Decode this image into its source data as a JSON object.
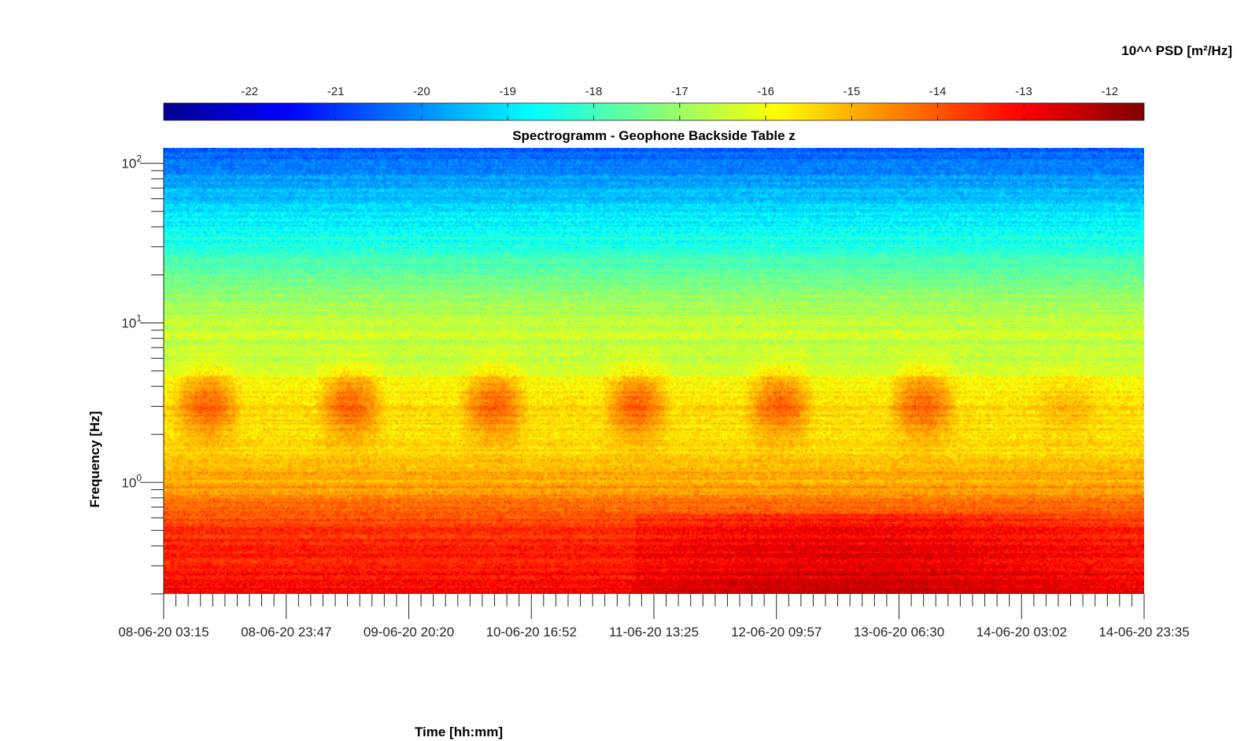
{
  "chart_data": {
    "type": "heatmap",
    "title": "Spectrogramm - Geophone Backside Table z",
    "xlabel": "Time [hh:mm]",
    "ylabel": "Frequency [Hz]",
    "colorbar_label": "10^^ PSD [m²/Hz]",
    "y_scale": "log",
    "ylim": [
      0.2,
      125
    ],
    "y_major_ticks": [
      {
        "value": 1,
        "base": "10",
        "exp": "0"
      },
      {
        "value": 10,
        "base": "10",
        "exp": "1"
      },
      {
        "value": 100,
        "base": "10",
        "exp": "2"
      }
    ],
    "x_tick_labels": [
      "08-06-20 03:15",
      "08-06-20 23:47",
      "09-06-20 20:20",
      "10-06-20 16:52",
      "11-06-20 13:25",
      "12-06-20 09:57",
      "13-06-20 06:30",
      "14-06-20 03:02",
      "14-06-20 23:35"
    ],
    "colorbar": {
      "range": [
        -23,
        -11.6
      ],
      "colormap": "jet",
      "tick_values": [
        -22,
        -21,
        -20,
        -19,
        -18,
        -17,
        -16,
        -15,
        -14,
        -13,
        -12
      ],
      "tick_labels": [
        "-22",
        "-21",
        "-20",
        "-19",
        "-18",
        "-17",
        "-16",
        "-15",
        "-14",
        "-13",
        "-12"
      ]
    },
    "grid": false,
    "colors": {
      "low": "#00008f",
      "mid": "#7fff7f",
      "high": "#800000"
    },
    "profile_log10_psd": [
      {
        "freq": 0.2,
        "value": -13.0
      },
      {
        "freq": 0.5,
        "value": -13.6
      },
      {
        "freq": 0.9,
        "value": -14.8
      },
      {
        "freq": 2.0,
        "value": -15.6
      },
      {
        "freq": 3.2,
        "value": -15.4
      },
      {
        "freq": 6.0,
        "value": -16.6
      },
      {
        "freq": 10.0,
        "value": -16.5
      },
      {
        "freq": 20.0,
        "value": -17.6
      },
      {
        "freq": 40.0,
        "value": -18.7
      },
      {
        "freq": 70.0,
        "value": -19.6
      },
      {
        "freq": 120.0,
        "value": -20.6
      }
    ]
  }
}
